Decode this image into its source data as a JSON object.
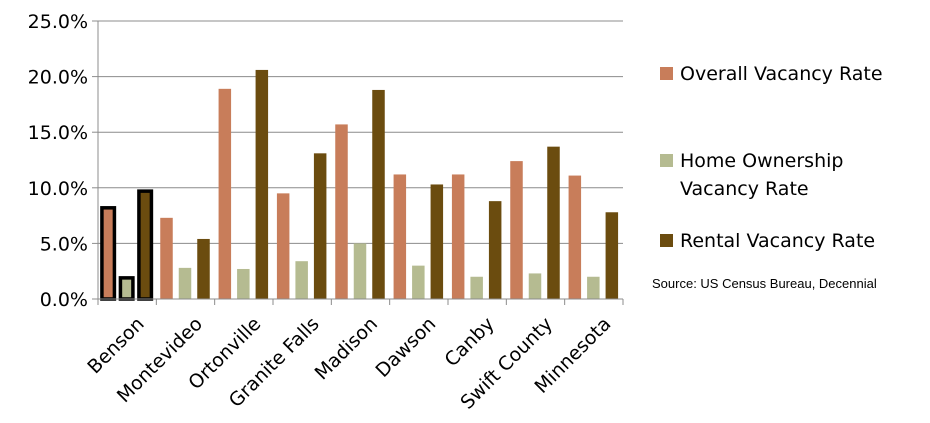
{
  "chart_data": {
    "type": "bar",
    "categories": [
      "Benson",
      "Montevideo",
      "Ortonville",
      "Granite Falls",
      "Madison",
      "Dawson",
      "Canby",
      "Swift County",
      "Minnesota"
    ],
    "series": [
      {
        "name": "Overall Vacancy Rate",
        "color": "#c87d5a",
        "values": [
          8.2,
          7.3,
          18.9,
          9.5,
          15.7,
          11.2,
          11.2,
          12.4,
          11.1
        ]
      },
      {
        "name": "Home Ownership Vacancy Rate",
        "color": "#b5bb91",
        "values": [
          1.9,
          2.8,
          2.7,
          3.4,
          5.0,
          3.0,
          2.0,
          2.3,
          2.0
        ]
      },
      {
        "name": "Rental Vacancy Rate",
        "color": "#6b4c0f",
        "values": [
          9.7,
          5.4,
          20.6,
          13.1,
          18.8,
          10.3,
          8.8,
          13.7,
          7.8
        ]
      }
    ],
    "yticks": [
      "0.0%",
      "5.0%",
      "10.0%",
      "15.0%",
      "20.0%",
      "25.0%"
    ],
    "ylim": [
      0,
      25
    ],
    "highlighted_category": "Benson",
    "grid": true,
    "legend_position": "right",
    "source": "Source: US Census Bureau, Decennial"
  },
  "legend": {
    "items": [
      {
        "label_lines": [
          "Overall Vacancy Rate"
        ],
        "color": "#c87d5a"
      },
      {
        "label_lines": [
          "Home Ownership",
          "Vacancy Rate"
        ],
        "color": "#b5bb91"
      },
      {
        "label_lines": [
          "Rental Vacancy Rate"
        ],
        "color": "#6b4c0f"
      }
    ]
  }
}
